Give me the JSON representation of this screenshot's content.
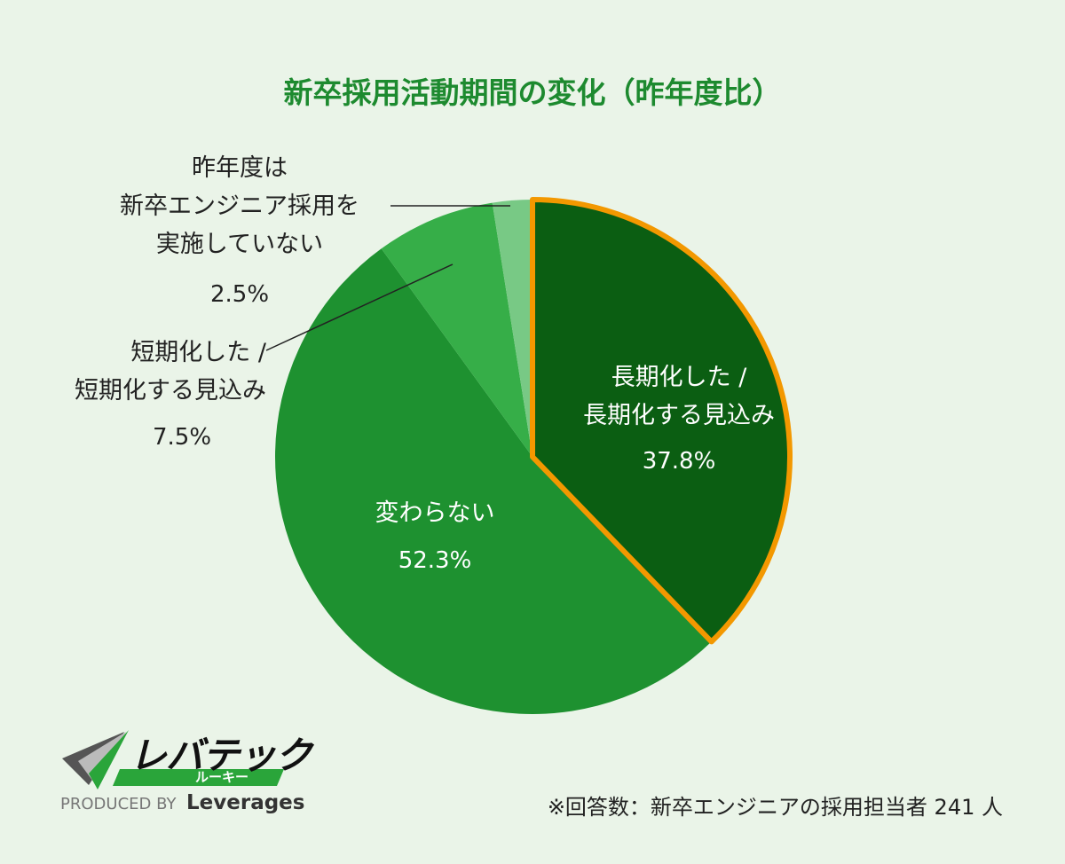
{
  "chart_data": {
    "type": "pie",
    "title": "新卒採用活動期間の変化（昨年度比）",
    "categories": [
      "長期化した /\n長期化する見込み",
      "変わらない",
      "短期化した /\n短期化する見込み",
      "昨年度は\n新卒エンジニア採用を\n実施していない"
    ],
    "values": [
      37.8,
      52.3,
      7.5,
      2.5
    ],
    "value_labels": [
      "37.8%",
      "52.3%",
      "7.5%",
      "2.5%"
    ],
    "colors": [
      "#0b5e12",
      "#1e9130",
      "#36ae48",
      "#78c985"
    ],
    "highlight_index": 0,
    "highlight_color": "#f39800"
  },
  "note": "※回答数：新卒エンジニアの採用担当者 241 人",
  "logo": {
    "name": "レバテック",
    "sub": "ルーキー",
    "produced_by": "PRODUCED BY",
    "company": "Leverages"
  }
}
